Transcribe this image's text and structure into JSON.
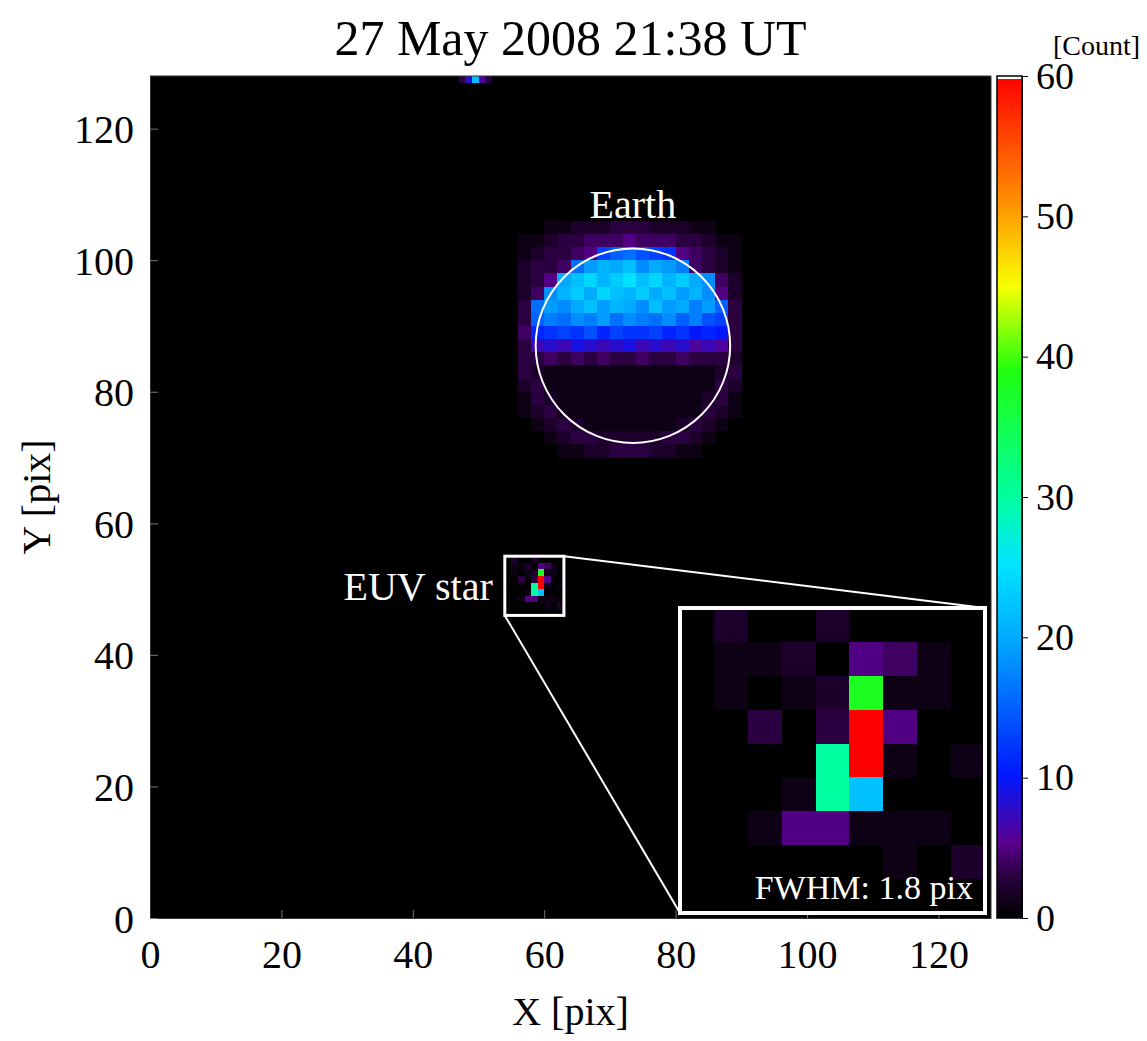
{
  "chart_data": {
    "type": "heatmap",
    "title": "27 May 2008 21:38 UT",
    "x_label": "X [pix]",
    "y_label": "Y [pix]",
    "xlim": [
      0,
      128
    ],
    "ylim": [
      0,
      128
    ],
    "xticks": [
      0,
      20,
      40,
      60,
      80,
      100,
      120
    ],
    "yticks": [
      0,
      20,
      40,
      60,
      80,
      100,
      120
    ],
    "colorbar": {
      "label": "[Count]",
      "range": [
        0,
        60
      ],
      "ticks": [
        0,
        10,
        20,
        30,
        40,
        50,
        60
      ]
    },
    "earth_circle": {
      "cx": 73.5,
      "cy": 87,
      "r": 14.8
    },
    "annotations": {
      "earth": "Earth",
      "star": "EUV star",
      "fwhm": "FWHM: 1.8 pix"
    },
    "cells": {
      "earth": {
        "x0": 56,
        "y_top": 106,
        "cell": 2,
        "values": [
          [
            0,
            0,
            1,
            1,
            2,
            2,
            2,
            3,
            3,
            3,
            2,
            2,
            2,
            1,
            1,
            0,
            0
          ],
          [
            1,
            1,
            2,
            3,
            3,
            4,
            4,
            4,
            5,
            4,
            4,
            4,
            3,
            3,
            2,
            1,
            1
          ],
          [
            1,
            2,
            3,
            3,
            4,
            5,
            13,
            15,
            16,
            14,
            13,
            12,
            5,
            4,
            3,
            2,
            1
          ],
          [
            2,
            3,
            3,
            4,
            16,
            19,
            21,
            20,
            22,
            18,
            20,
            19,
            17,
            4,
            3,
            2,
            1
          ],
          [
            2,
            3,
            5,
            20,
            22,
            24,
            21,
            23,
            25,
            22,
            24,
            21,
            23,
            20,
            18,
            4,
            2
          ],
          [
            2,
            4,
            18,
            21,
            23,
            20,
            24,
            22,
            21,
            23,
            20,
            22,
            19,
            21,
            18,
            5,
            2
          ],
          [
            3,
            16,
            19,
            18,
            20,
            22,
            19,
            21,
            20,
            18,
            22,
            19,
            20,
            17,
            19,
            15,
            3
          ],
          [
            3,
            15,
            17,
            16,
            18,
            17,
            19,
            16,
            18,
            17,
            16,
            18,
            15,
            17,
            14,
            13,
            3
          ],
          [
            4,
            11,
            12,
            13,
            12,
            14,
            11,
            13,
            12,
            12,
            13,
            11,
            12,
            10,
            11,
            10,
            3
          ],
          [
            3,
            7,
            8,
            7,
            9,
            8,
            7,
            8,
            9,
            7,
            8,
            7,
            8,
            6,
            7,
            6,
            3
          ],
          [
            3,
            3,
            4,
            3,
            4,
            3,
            4,
            3,
            3,
            4,
            3,
            3,
            4,
            3,
            3,
            3,
            2
          ],
          [
            3,
            2,
            1,
            1,
            1,
            1,
            1,
            1,
            1,
            1,
            1,
            1,
            1,
            1,
            1,
            2,
            3
          ],
          [
            2,
            3,
            1,
            1,
            1,
            1,
            1,
            1,
            1,
            1,
            1,
            1,
            1,
            1,
            1,
            3,
            2
          ],
          [
            1,
            3,
            2,
            1,
            1,
            1,
            1,
            1,
            1,
            1,
            1,
            1,
            1,
            1,
            2,
            3,
            1
          ],
          [
            1,
            2,
            3,
            1,
            1,
            1,
            1,
            1,
            1,
            1,
            1,
            1,
            1,
            1,
            3,
            2,
            1
          ],
          [
            0,
            1,
            2,
            3,
            2,
            1,
            1,
            1,
            1,
            1,
            1,
            1,
            2,
            3,
            2,
            1,
            0
          ],
          [
            0,
            0,
            1,
            2,
            3,
            3,
            2,
            2,
            2,
            2,
            2,
            3,
            3,
            2,
            1,
            0,
            0
          ],
          [
            0,
            0,
            0,
            1,
            1,
            2,
            2,
            3,
            3,
            3,
            2,
            2,
            1,
            1,
            0,
            0,
            0
          ]
        ]
      },
      "star": {
        "x0": 54,
        "y_top": 55,
        "cell": 1,
        "values": [
          [
            0,
            2,
            0,
            0,
            2,
            0,
            0,
            0,
            0
          ],
          [
            0,
            1,
            1,
            2,
            0,
            5,
            4,
            1,
            0
          ],
          [
            0,
            1,
            0,
            1,
            2,
            38,
            1,
            1,
            0
          ],
          [
            0,
            0,
            3,
            0,
            3,
            60,
            5,
            0,
            0
          ],
          [
            0,
            0,
            0,
            0,
            30,
            60,
            1,
            0,
            1
          ],
          [
            0,
            0,
            0,
            1,
            30,
            22,
            0,
            0,
            0
          ],
          [
            0,
            0,
            1,
            5,
            5,
            1,
            1,
            1,
            0
          ],
          [
            0,
            0,
            0,
            0,
            0,
            0,
            1,
            0,
            2
          ],
          [
            0,
            0,
            0,
            0,
            0,
            0,
            0,
            0,
            0
          ]
        ]
      },
      "edge": {
        "x0": 47,
        "y_top": 128,
        "cell": 1,
        "values": [
          [
            3,
            8,
            22,
            6,
            3
          ]
        ]
      }
    }
  }
}
